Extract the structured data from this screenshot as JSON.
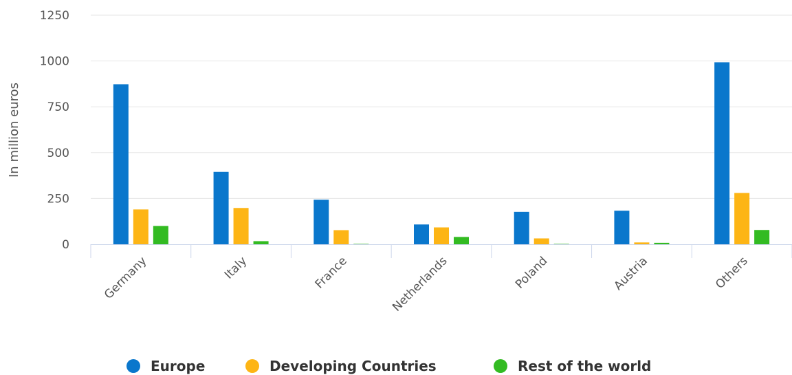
{
  "chart_data": {
    "type": "bar",
    "categories": [
      "Germany",
      "Italy",
      "France",
      "Netherlands",
      "Poland",
      "Austria",
      "Others"
    ],
    "series": [
      {
        "name": "Europe",
        "color": "#0a77cc",
        "values": [
          873,
          395,
          243,
          108,
          177,
          183,
          993
        ]
      },
      {
        "name": "Developing Countries",
        "color": "#fdb515",
        "values": [
          190,
          198,
          77,
          92,
          32,
          10,
          280
        ]
      },
      {
        "name": "Rest of the world",
        "color": "#33bb22",
        "values": [
          100,
          17,
          2,
          40,
          2,
          8,
          78
        ]
      }
    ],
    "ylabel": "In million euros",
    "xlabel": "",
    "ylim": [
      0,
      1250
    ],
    "yticks": [
      0,
      250,
      500,
      750,
      1000,
      1250
    ],
    "grid": true,
    "legend_position": "bottom-center"
  }
}
